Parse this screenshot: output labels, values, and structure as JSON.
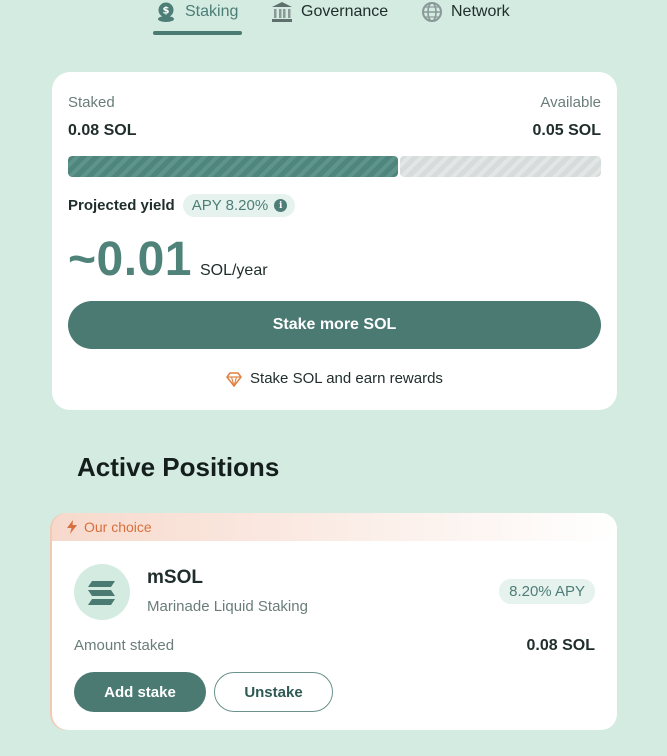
{
  "tabs": [
    {
      "label": "Staking",
      "icon": "coin-stack-icon",
      "active": true
    },
    {
      "label": "Governance",
      "icon": "bank-icon",
      "active": false
    },
    {
      "label": "Network",
      "icon": "globe-icon",
      "active": false
    }
  ],
  "summary": {
    "staked_label": "Staked",
    "staked_value": "0.08 SOL",
    "available_label": "Available",
    "available_value": "0.05 SOL",
    "staked_fraction": 0.62,
    "yield_label": "Projected yield",
    "apy_badge": "APY 8.20%",
    "projected_value": "~0.01",
    "projected_unit": "SOL/year",
    "stake_button": "Stake more SOL",
    "promo_text": "Stake SOL and earn rewards"
  },
  "positions": {
    "title": "Active Positions",
    "items": [
      {
        "badge": "Our choice",
        "name": "mSOL",
        "provider": "Marinade Liquid Staking",
        "apy": "8.20% APY",
        "amount_label": "Amount staked",
        "amount_value": "0.08 SOL",
        "add_button": "Add stake",
        "unstake_button": "Unstake"
      }
    ]
  },
  "colors": {
    "background": "#d4ebe1",
    "accent": "#4a7a72",
    "promo_orange": "#d7703e"
  }
}
